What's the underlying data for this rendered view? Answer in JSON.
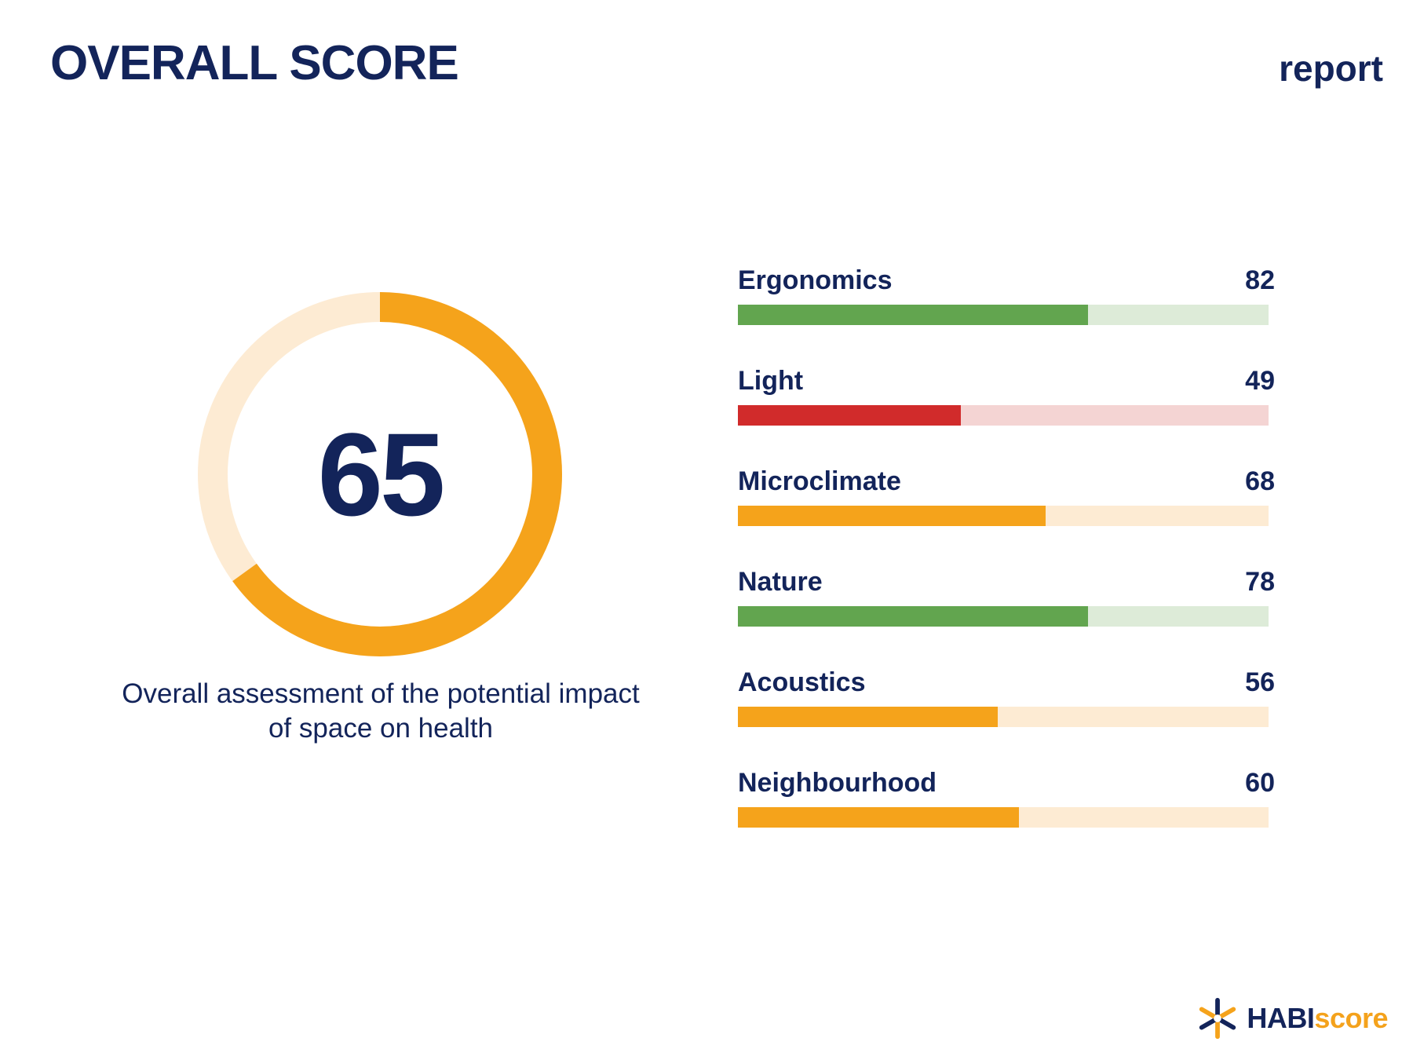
{
  "header": {
    "title": "OVERALL SCORE",
    "report_label": "report"
  },
  "overall": {
    "score": "65",
    "progress": 0.65,
    "caption": "Overall assessment of the potential impact of space on health",
    "color_fill": "#f5a31b",
    "color_track": "#fdebd3"
  },
  "categories": [
    {
      "name": "Ergonomics",
      "score": "82",
      "fill": 0.66,
      "color": "#62a54f",
      "track": "#ddebd8"
    },
    {
      "name": "Light",
      "score": "49",
      "fill": 0.42,
      "color": "#d12b2b",
      "track": "#f4d4d3"
    },
    {
      "name": "Microclimate",
      "score": "68",
      "fill": 0.58,
      "color": "#f5a31b",
      "track": "#fdebd3"
    },
    {
      "name": "Nature",
      "score": "78",
      "fill": 0.66,
      "color": "#62a54f",
      "track": "#ddebd8"
    },
    {
      "name": "Acoustics",
      "score": "56",
      "fill": 0.49,
      "color": "#f5a31b",
      "track": "#fdebd3"
    },
    {
      "name": "Neighbourhood",
      "score": "60",
      "fill": 0.53,
      "color": "#f5a31b",
      "track": "#fdebd3"
    }
  ],
  "logo": {
    "text_main": "HABI",
    "text_accent": "score",
    "icon": "habiscore-logo-icon"
  }
}
